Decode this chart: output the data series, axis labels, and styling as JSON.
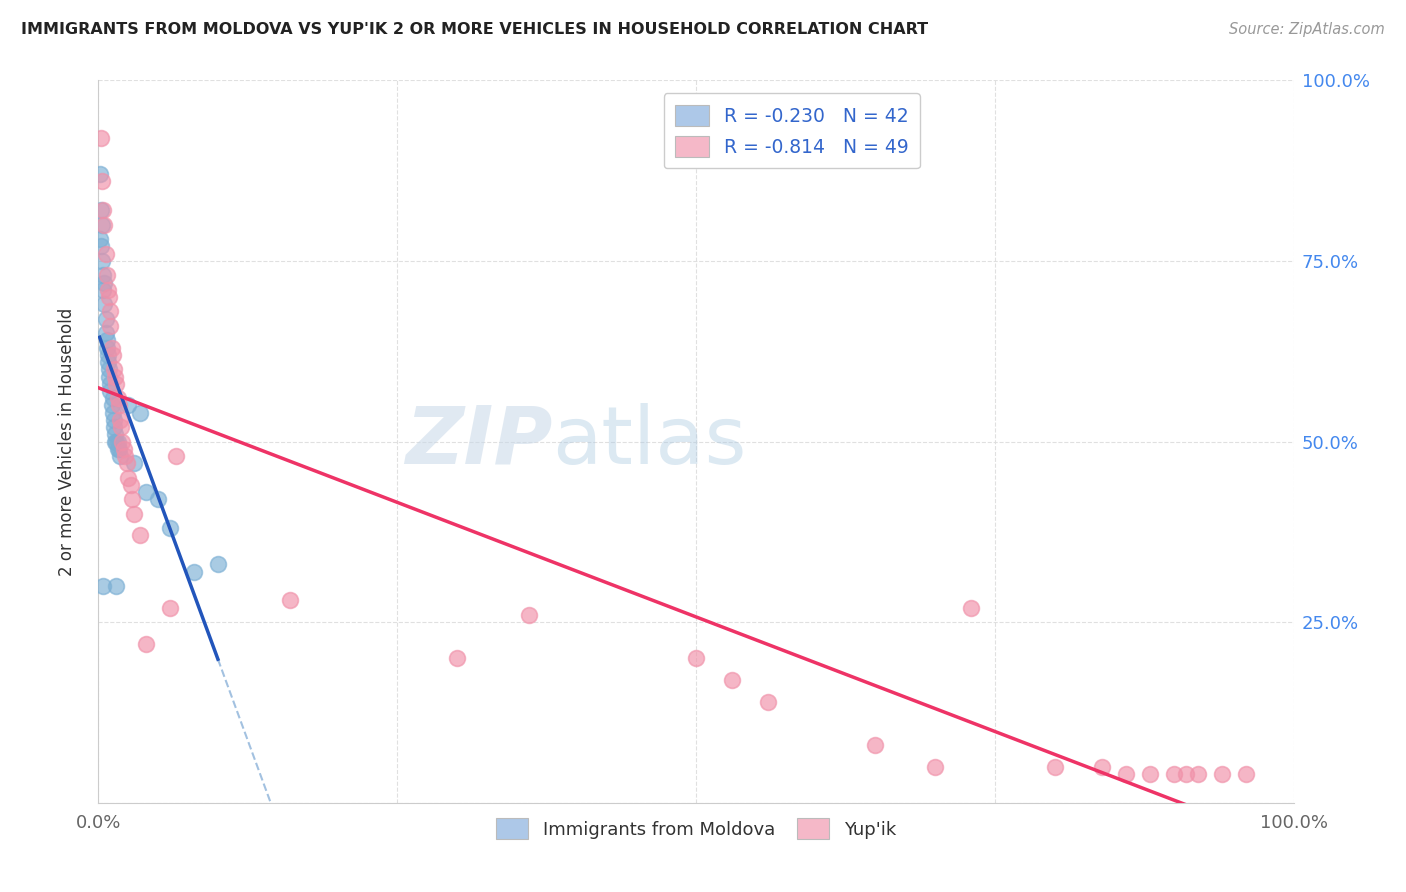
{
  "title": "IMMIGRANTS FROM MOLDOVA VS YUP'IK 2 OR MORE VEHICLES IN HOUSEHOLD CORRELATION CHART",
  "source": "Source: ZipAtlas.com",
  "ylabel": "2 or more Vehicles in Household",
  "legend1_color": "#adc8e8",
  "legend2_color": "#f5b8c8",
  "scatter1_color": "#7bafd4",
  "scatter2_color": "#f090a8",
  "line1_color": "#2255bb",
  "line2_color": "#ee3366",
  "dash_color": "#99bbdd",
  "background_color": "#ffffff",
  "grid_color": "#dddddd",
  "R1": -0.23,
  "N1": 42,
  "R2": -0.814,
  "N2": 49,
  "blue_x": [
    0.001,
    0.001,
    0.002,
    0.002,
    0.003,
    0.003,
    0.004,
    0.004,
    0.005,
    0.005,
    0.006,
    0.006,
    0.007,
    0.007,
    0.008,
    0.008,
    0.009,
    0.009,
    0.01,
    0.01,
    0.011,
    0.012,
    0.012,
    0.013,
    0.013,
    0.014,
    0.014,
    0.015,
    0.016,
    0.016,
    0.017,
    0.018,
    0.025,
    0.03,
    0.035,
    0.04,
    0.05,
    0.06,
    0.08,
    0.1,
    0.004,
    0.015
  ],
  "blue_y": [
    0.87,
    0.78,
    0.82,
    0.77,
    0.8,
    0.75,
    0.73,
    0.71,
    0.72,
    0.69,
    0.67,
    0.65,
    0.64,
    0.63,
    0.62,
    0.61,
    0.6,
    0.59,
    0.58,
    0.57,
    0.55,
    0.56,
    0.54,
    0.53,
    0.52,
    0.51,
    0.5,
    0.5,
    0.5,
    0.49,
    0.49,
    0.48,
    0.55,
    0.47,
    0.54,
    0.43,
    0.42,
    0.38,
    0.32,
    0.33,
    0.3,
    0.3
  ],
  "pink_x": [
    0.002,
    0.003,
    0.004,
    0.005,
    0.006,
    0.007,
    0.008,
    0.009,
    0.01,
    0.01,
    0.011,
    0.012,
    0.013,
    0.014,
    0.015,
    0.016,
    0.017,
    0.018,
    0.019,
    0.02,
    0.021,
    0.022,
    0.024,
    0.025,
    0.027,
    0.028,
    0.03,
    0.035,
    0.04,
    0.065,
    0.06,
    0.16,
    0.3,
    0.36,
    0.5,
    0.53,
    0.56,
    0.65,
    0.7,
    0.73,
    0.8,
    0.84,
    0.86,
    0.88,
    0.9,
    0.91,
    0.92,
    0.94,
    0.96
  ],
  "pink_y": [
    0.92,
    0.86,
    0.82,
    0.8,
    0.76,
    0.73,
    0.71,
    0.7,
    0.68,
    0.66,
    0.63,
    0.62,
    0.6,
    0.59,
    0.58,
    0.56,
    0.55,
    0.53,
    0.52,
    0.5,
    0.49,
    0.48,
    0.47,
    0.45,
    0.44,
    0.42,
    0.4,
    0.37,
    0.22,
    0.48,
    0.27,
    0.28,
    0.2,
    0.26,
    0.2,
    0.17,
    0.14,
    0.08,
    0.05,
    0.27,
    0.05,
    0.05,
    0.04,
    0.04,
    0.04,
    0.04,
    0.04,
    0.04,
    0.04
  ]
}
